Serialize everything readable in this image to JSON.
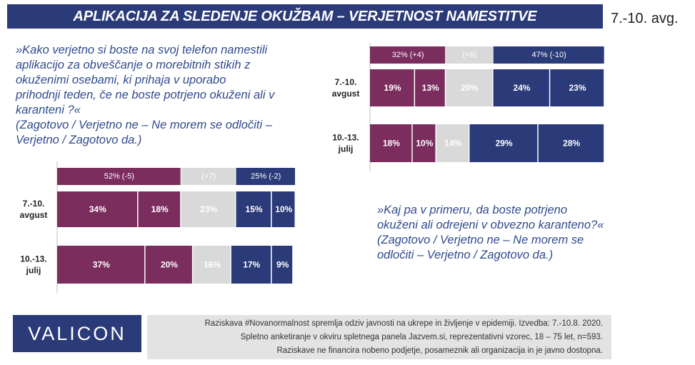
{
  "header": {
    "title": "APLIKACIJA ZA SLEDENJE OKUŽBAM – VERJETNOST NAMESTITVE",
    "date": "7.-10. avg."
  },
  "question1": [
    "»Kako verjetno si boste na svoj telefon namestili",
    "aplikacijo za obveščanje o morebitnih stikih z",
    "okuženimi osebami, ki prihaja v uporabo",
    "prihodnji teden, če ne boste potrjeno okuženi ali v",
    "karanteni ?«",
    "(Zagotovo / Verjetno ne – Ne morem se odločiti –",
    "Verjetno / Zagotovo da.)"
  ],
  "question2": [
    "»Kaj pa v primeru, da boste potrjeno",
    "okuženi ali odrejeni v obvezno karanteno?«",
    "(Zagotovo / Verjetno ne – Ne morem se",
    "odločiti – Verjetno / Zagotovo da.)"
  ],
  "colors": {
    "surely_no": "#7b2d5e",
    "likely_no": "#7b2d5e",
    "undecided": "#d9d9d9",
    "likely_yes": "#2b3a78",
    "surely_yes": "#2b3a78",
    "header": "#2b3a78"
  },
  "chart_data": [
    {
      "type": "bar",
      "stacked": true,
      "orientation": "horizontal",
      "categories": [
        "7.-10. avgust",
        "10.-13. julij"
      ],
      "series": [
        {
          "values": [
            34,
            37
          ]
        },
        {
          "values": [
            18,
            20
          ]
        },
        {
          "values": [
            23,
            16
          ]
        },
        {
          "values": [
            15,
            17
          ]
        },
        {
          "values": [
            10,
            9
          ]
        }
      ],
      "summary": [
        "52% (-5)",
        "(+7)",
        "25% (-2)"
      ],
      "summary_values": [
        52,
        23,
        25
      ]
    },
    {
      "type": "bar",
      "stacked": true,
      "orientation": "horizontal",
      "categories": [
        "7.-10. avgust",
        "10.-13. julij"
      ],
      "series": [
        {
          "values": [
            19,
            18
          ]
        },
        {
          "values": [
            13,
            10
          ]
        },
        {
          "values": [
            20,
            14
          ]
        },
        {
          "values": [
            24,
            29
          ]
        },
        {
          "values": [
            23,
            28
          ]
        }
      ],
      "summary": [
        "32% (+4)",
        "(+6)",
        "47% (-10)"
      ],
      "summary_values": [
        32,
        20,
        47
      ]
    }
  ],
  "footer": {
    "logo": "VALICON",
    "lines": [
      "Raziskava #Novanormalnost spremlja odziv javnosti na ukrepe in življenje v epidemiji. Izvedba: 7.-10.8. 2020.",
      "Spletno anketiranje v okviru spletnega panela Jazvem.si, reprezentativni vzorec, 18 – 75 let, n=593.",
      "Raziskave ne financira nobeno podjetje, posameznik ali organizacija in je javno dostopna."
    ]
  }
}
